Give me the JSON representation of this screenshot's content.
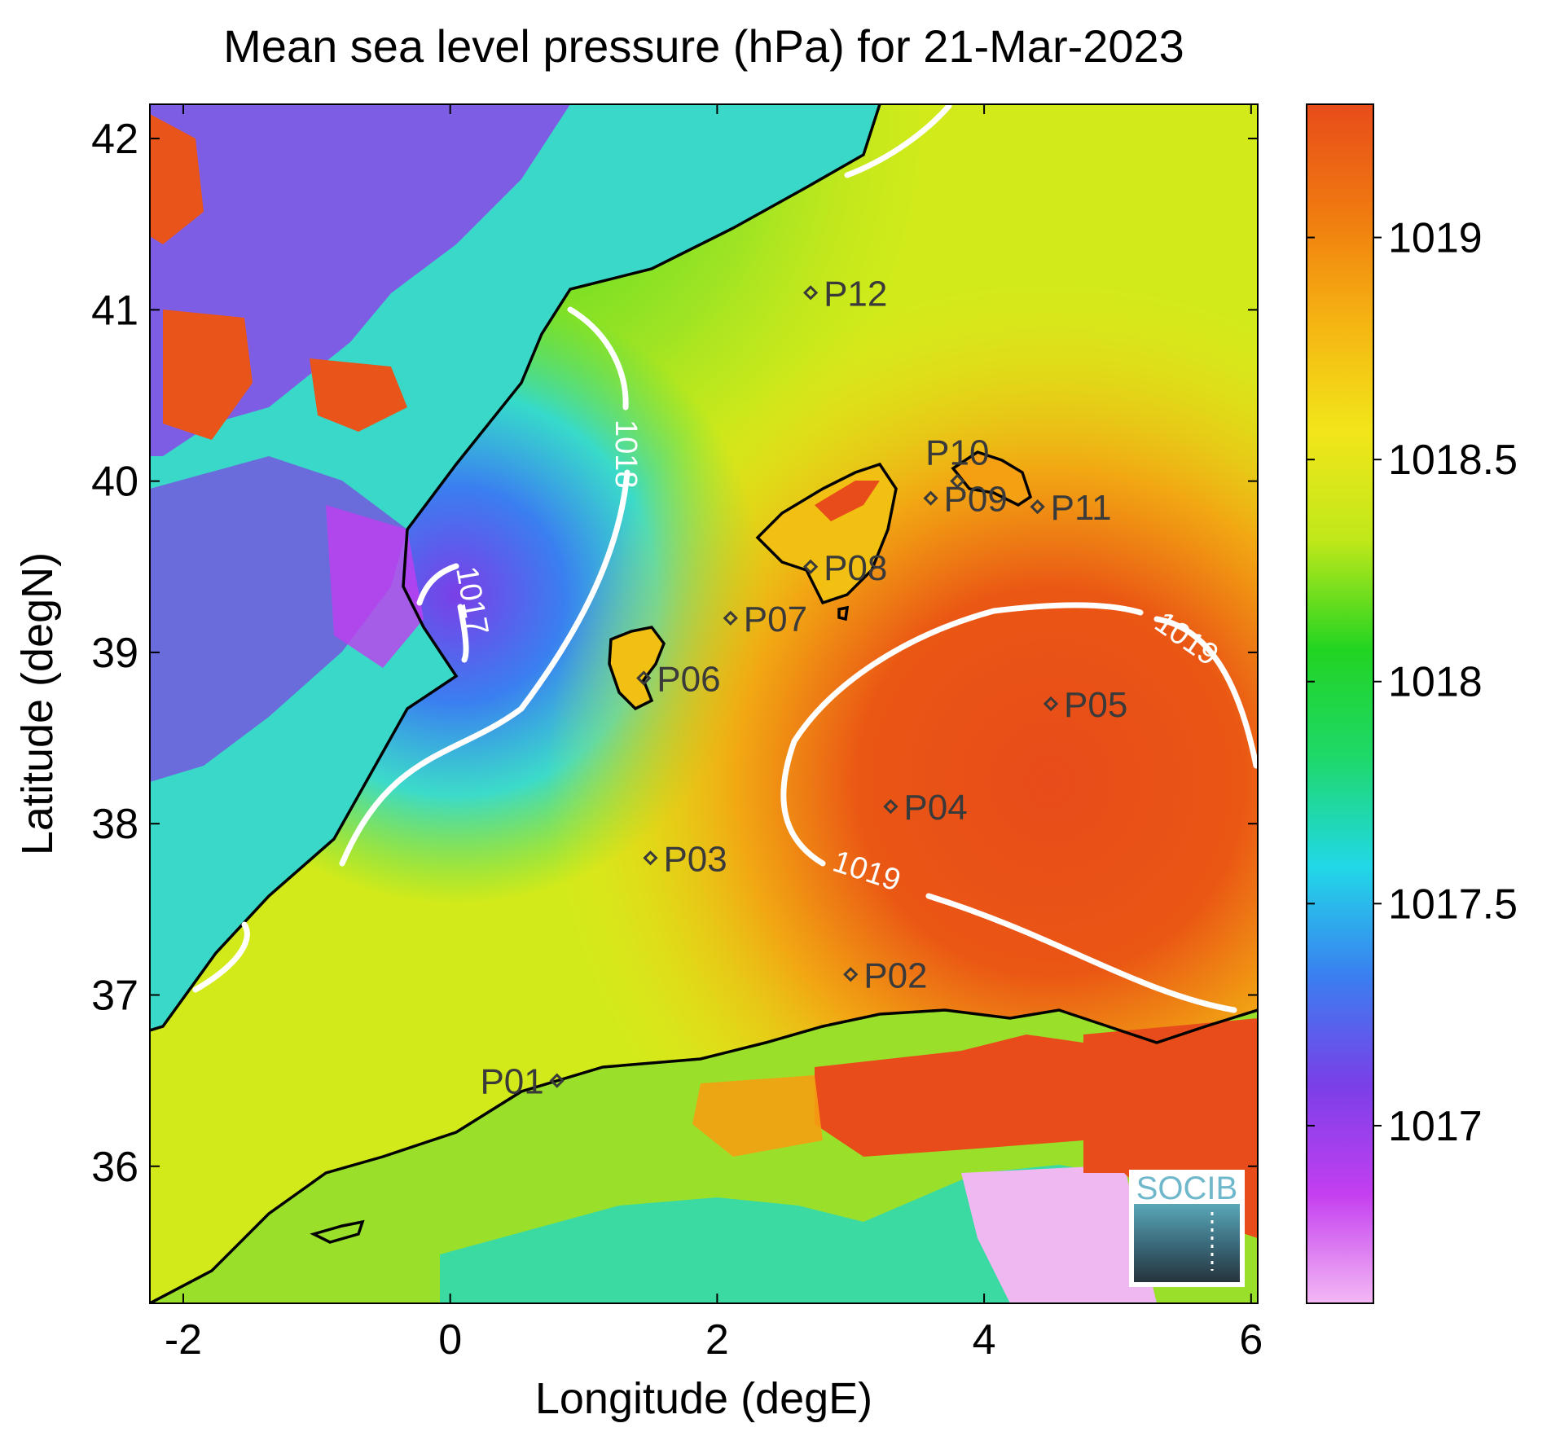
{
  "title": "Mean sea level pressure (hPa) for 21-Mar-2023",
  "x_axis": {
    "label": "Longitude (degE)",
    "min": -2.25,
    "max": 6.05,
    "ticks": [
      "-2",
      "0",
      "2",
      "4",
      "6"
    ]
  },
  "y_axis": {
    "label": "Latitude (degN)",
    "min": 35.2,
    "max": 42.2,
    "ticks": [
      "36",
      "37",
      "38",
      "39",
      "40",
      "41",
      "42"
    ]
  },
  "colorbar": {
    "min": 1016.6,
    "max": 1019.3,
    "ticks": [
      "1017",
      "1017.5",
      "1018",
      "1018.5",
      "1019"
    ],
    "colormap": [
      "#f4b8f4",
      "#c43ff0",
      "#7a3fe8",
      "#3a7ff0",
      "#22d8e8",
      "#1ed86a",
      "#22d422",
      "#bfe81a",
      "#f2e61a",
      "#f5b412",
      "#f07a10",
      "#e84c1a"
    ]
  },
  "contours": [
    {
      "label": "1017",
      "value": 1017
    },
    {
      "label": "1018",
      "value": 1018
    },
    {
      "label": "1019",
      "value": 1019
    }
  ],
  "stations": [
    {
      "id": "P01",
      "lon": 0.8,
      "lat": 36.5
    },
    {
      "id": "P02",
      "lon": 3.0,
      "lat": 37.12
    },
    {
      "id": "P03",
      "lon": 1.5,
      "lat": 37.8
    },
    {
      "id": "P04",
      "lon": 3.3,
      "lat": 38.1
    },
    {
      "id": "P05",
      "lon": 4.5,
      "lat": 38.7
    },
    {
      "id": "P06",
      "lon": 1.45,
      "lat": 38.85
    },
    {
      "id": "P07",
      "lon": 2.1,
      "lat": 39.2
    },
    {
      "id": "P08",
      "lon": 2.7,
      "lat": 39.5
    },
    {
      "id": "P09",
      "lon": 3.6,
      "lat": 39.9
    },
    {
      "id": "P10",
      "lon": 3.8,
      "lat": 40.0
    },
    {
      "id": "P11",
      "lon": 4.4,
      "lat": 39.85
    },
    {
      "id": "P12",
      "lon": 2.7,
      "lat": 41.1
    }
  ],
  "logo": {
    "text": "SOCIB"
  }
}
